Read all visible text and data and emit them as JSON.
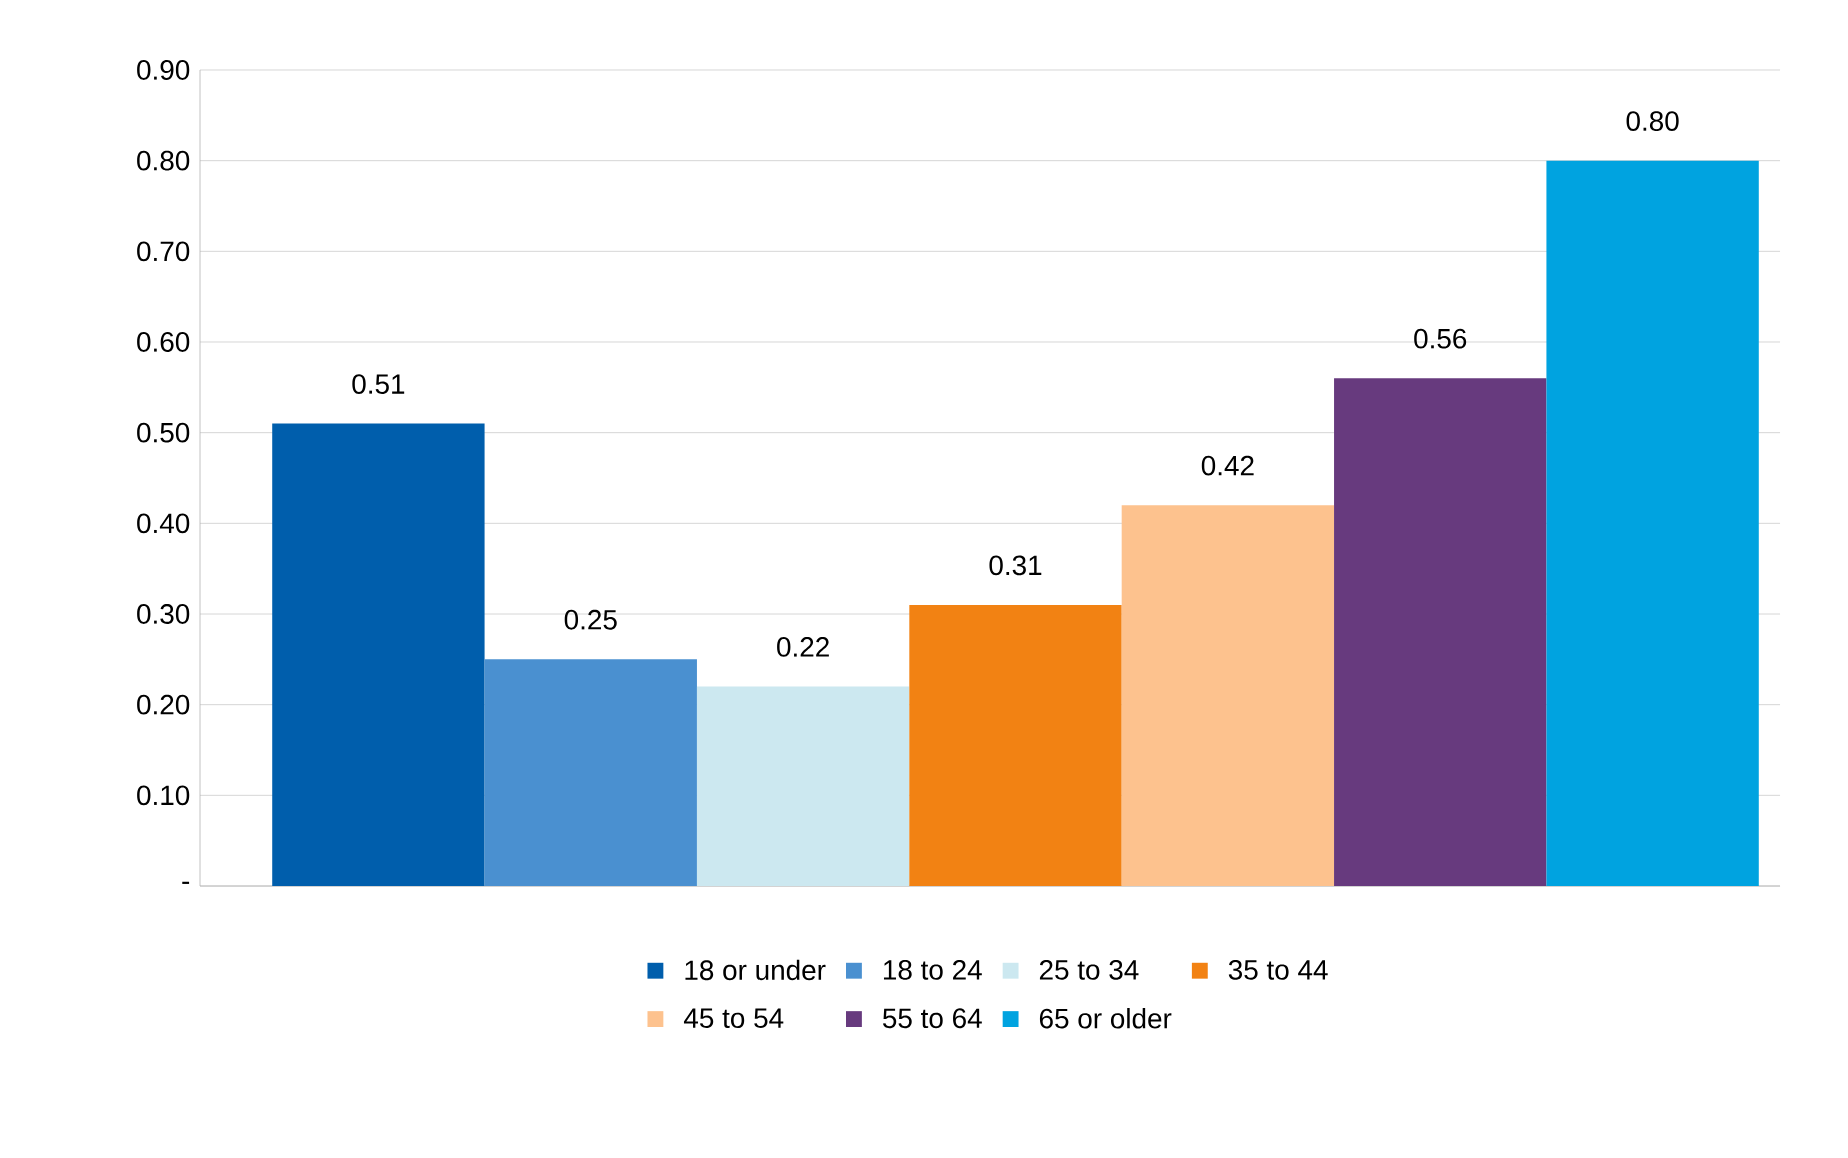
{
  "chart_data": {
    "type": "bar",
    "categories": [
      null
    ],
    "series": [
      {
        "name": "18 or under",
        "color": "#005eac",
        "values": [
          0.51
        ],
        "value_labels": [
          "0.51"
        ]
      },
      {
        "name": "18 to 24",
        "color": "#4a90d0",
        "values": [
          0.25
        ],
        "value_labels": [
          "0.25"
        ]
      },
      {
        "name": "25 to 34",
        "color": "#cce8f0",
        "values": [
          0.22
        ],
        "value_labels": [
          "0.22"
        ]
      },
      {
        "name": "35 to 44",
        "color": "#f28213",
        "values": [
          0.31
        ],
        "value_labels": [
          "0.31"
        ]
      },
      {
        "name": "45 to 54",
        "color": "#fdc28e",
        "values": [
          0.42
        ],
        "value_labels": [
          "0.42"
        ]
      },
      {
        "name": "55 to 64",
        "color": "#673a7e",
        "values": [
          0.56
        ],
        "value_labels": [
          "0.56"
        ]
      },
      {
        "name": "65 or older",
        "color": "#00a3e0",
        "values": [
          0.8
        ],
        "value_labels": [
          "0.80"
        ]
      }
    ],
    "ylim": [
      0,
      0.9
    ],
    "yticks": [
      {
        "value": 0,
        "label": "-"
      },
      {
        "value": 0.1,
        "label": "0.10"
      },
      {
        "value": 0.2,
        "label": "0.20"
      },
      {
        "value": 0.3,
        "label": "0.30"
      },
      {
        "value": 0.4,
        "label": "0.40"
      },
      {
        "value": 0.5,
        "label": "0.50"
      },
      {
        "value": 0.6,
        "label": "0.60"
      },
      {
        "value": 0.7,
        "label": "0.70"
      },
      {
        "value": 0.8,
        "label": "0.80"
      },
      {
        "value": 0.9,
        "label": "0.90"
      }
    ],
    "grid": "y",
    "legend": "bottom"
  }
}
